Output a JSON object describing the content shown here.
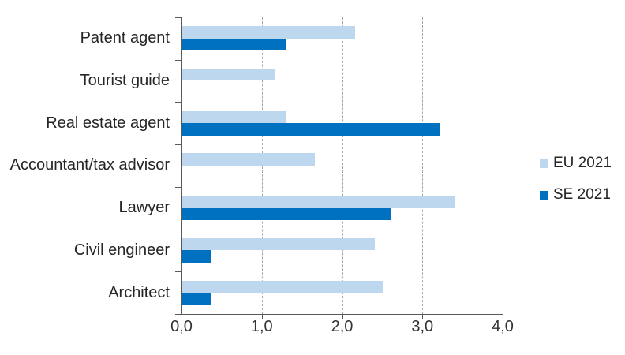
{
  "chart_data": {
    "type": "bar",
    "orientation": "horizontal",
    "title": "",
    "xlabel": "",
    "ylabel": "",
    "categories": [
      "Patent agent",
      "Tourist guide",
      "Real estate agent",
      "Accountant/tax advisor",
      "Lawyer",
      "Civil engineer",
      "Architect"
    ],
    "series": [
      {
        "name": "EU 2021",
        "color": "#BDD7EE",
        "values": [
          2.15,
          1.15,
          1.3,
          1.65,
          3.4,
          2.4,
          2.5
        ]
      },
      {
        "name": "SE 2021",
        "color": "#0070C0",
        "values": [
          1.3,
          0,
          3.2,
          0,
          2.6,
          0.35,
          0.35
        ]
      }
    ],
    "xlim": [
      0,
      4
    ],
    "x_tick_labels": [
      "0,0",
      "1,0",
      "2,0",
      "3,0",
      "4,0"
    ],
    "grid": "vertical-dashed",
    "legend_position": "right",
    "decimal_separator": ","
  },
  "colors": {
    "background": "#FFFFFF",
    "axis": "#595959",
    "gridline": "#A6A6A6",
    "text": "#262626",
    "eu_series": "#BDD7EE",
    "se_series": "#0070C0"
  }
}
